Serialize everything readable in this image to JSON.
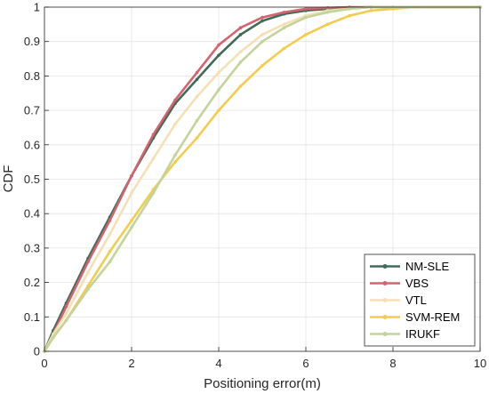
{
  "chart_data": {
    "type": "line",
    "title": "",
    "xlabel": "Positioning error(m)",
    "ylabel": "CDF",
    "xlim": [
      0,
      10
    ],
    "ylim": [
      0,
      1
    ],
    "x_ticks": [
      "0",
      "2",
      "4",
      "6",
      "8",
      "10"
    ],
    "y_ticks": [
      "0",
      "0.1",
      "0.2",
      "0.3",
      "0.4",
      "0.5",
      "0.6",
      "0.7",
      "0.8",
      "0.9",
      "1"
    ],
    "grid": true,
    "legend_position": "bottom-right",
    "series": [
      {
        "name": "NM-SLE",
        "color": "#3f6b57",
        "x": [
          0,
          0.2,
          0.5,
          1.0,
          1.5,
          2.0,
          2.5,
          3.0,
          3.5,
          4.0,
          4.5,
          5.0,
          5.5,
          6.0,
          6.5,
          7.0,
          7.5,
          8.0,
          10
        ],
        "y": [
          0,
          0.06,
          0.14,
          0.27,
          0.39,
          0.51,
          0.62,
          0.72,
          0.79,
          0.86,
          0.92,
          0.96,
          0.98,
          0.99,
          0.995,
          0.998,
          1.0,
          1.0,
          1.0
        ]
      },
      {
        "name": "VBS",
        "color": "#d5636f",
        "x": [
          0,
          0.2,
          0.5,
          1.0,
          1.5,
          2.0,
          2.5,
          3.0,
          3.5,
          4.0,
          4.5,
          5.0,
          5.5,
          6.0,
          6.5,
          7.0,
          7.5,
          8.0,
          10
        ],
        "y": [
          0,
          0.05,
          0.13,
          0.26,
          0.38,
          0.51,
          0.63,
          0.73,
          0.81,
          0.89,
          0.94,
          0.97,
          0.985,
          0.995,
          0.998,
          1.0,
          1.0,
          1.0,
          1.0
        ]
      },
      {
        "name": "VTL",
        "color": "#f5e0b6",
        "x": [
          0,
          0.2,
          0.5,
          1.0,
          1.5,
          2.0,
          2.5,
          3.0,
          3.5,
          4.0,
          4.5,
          5.0,
          5.5,
          6.0,
          6.5,
          7.0,
          7.5,
          8.0,
          10
        ],
        "y": [
          0,
          0.05,
          0.11,
          0.23,
          0.34,
          0.46,
          0.56,
          0.66,
          0.74,
          0.81,
          0.87,
          0.92,
          0.95,
          0.975,
          0.99,
          0.995,
          1.0,
          1.0,
          1.0
        ]
      },
      {
        "name": "SVM-REM",
        "color": "#f2cc4c",
        "x": [
          0,
          0.2,
          0.5,
          1.0,
          1.5,
          2.0,
          2.5,
          3.0,
          3.5,
          4.0,
          4.5,
          5.0,
          5.5,
          6.0,
          6.5,
          7.0,
          7.5,
          8.0,
          8.5,
          10
        ],
        "y": [
          0,
          0.04,
          0.09,
          0.19,
          0.29,
          0.38,
          0.47,
          0.55,
          0.62,
          0.7,
          0.77,
          0.83,
          0.88,
          0.92,
          0.95,
          0.975,
          0.99,
          0.995,
          1.0,
          1.0
        ]
      },
      {
        "name": "IRUKF",
        "color": "#c3d39a",
        "x": [
          0,
          0.2,
          0.5,
          1.0,
          1.5,
          2.0,
          2.5,
          3.0,
          3.5,
          4.0,
          4.5,
          5.0,
          5.5,
          6.0,
          6.5,
          7.0,
          7.5,
          8.0,
          10
        ],
        "y": [
          0,
          0.04,
          0.09,
          0.18,
          0.26,
          0.36,
          0.46,
          0.57,
          0.67,
          0.76,
          0.84,
          0.9,
          0.94,
          0.97,
          0.985,
          0.995,
          1.0,
          1.0,
          1.0
        ]
      }
    ]
  }
}
